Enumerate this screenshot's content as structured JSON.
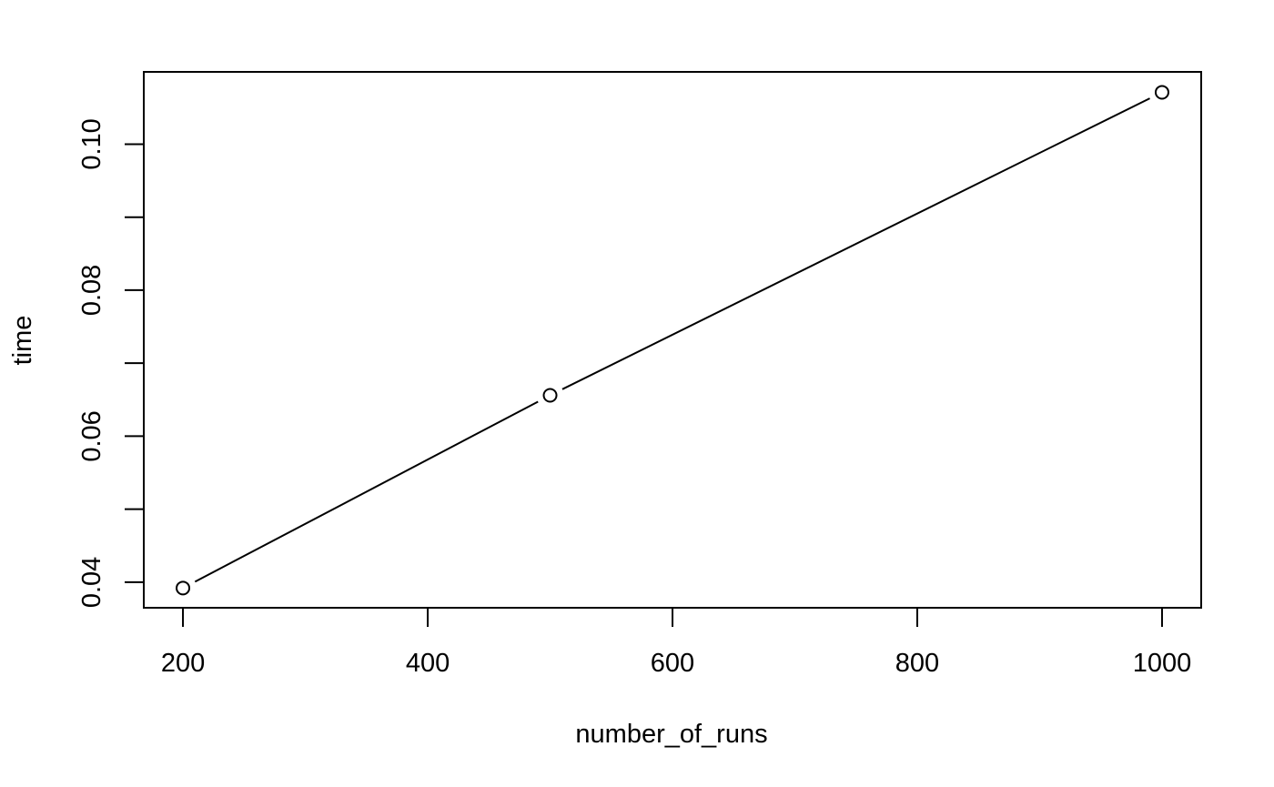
{
  "chart_data": {
    "type": "line",
    "title": "",
    "xlabel": "number_of_runs",
    "ylabel": "time",
    "x": [
      200,
      500,
      1000
    ],
    "series": [
      {
        "values": [
          0.0392,
          0.0656,
          0.1071
        ]
      }
    ],
    "xlim": [
      168,
      1032
    ],
    "ylim": [
      0.0365,
      0.1099
    ],
    "x_ticks": [
      200,
      400,
      600,
      800,
      1000
    ],
    "x_tick_labels": [
      "200",
      "400",
      "600",
      "800",
      "1000"
    ],
    "y_ticks": [
      0.04,
      0.05,
      0.06,
      0.07,
      0.08,
      0.09,
      0.1
    ],
    "y_tick_labels": [
      "0.04",
      "",
      "0.06",
      "",
      "0.08",
      "",
      "0.10"
    ],
    "grid": false,
    "marker": "open-circle",
    "line_color": "#000000"
  }
}
